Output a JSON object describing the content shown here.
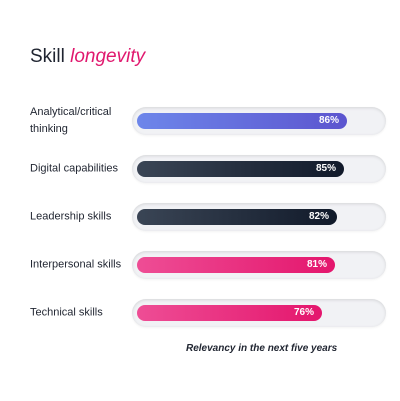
{
  "chart_data": {
    "type": "bar",
    "orientation": "horizontal",
    "title": "Skill",
    "title_accent": "longevity",
    "xlabel": "Relevancy in the next five years",
    "xlim": [
      0,
      100
    ],
    "categories": [
      "Analytical/critical thinking",
      "Digital capabilities",
      "Leadership skills",
      "Interpersonal skills",
      "Technical skills"
    ],
    "values": [
      86,
      85,
      82,
      81,
      76
    ],
    "value_labels": [
      "86%",
      "85%",
      "82%",
      "81%",
      "76%"
    ],
    "grid": false,
    "colors": {
      "title_accent": "#e0186e",
      "bars": [
        "#5c55cf",
        "#111a2a",
        "#111a2a",
        "#e4166d",
        "#e4166d"
      ]
    }
  }
}
